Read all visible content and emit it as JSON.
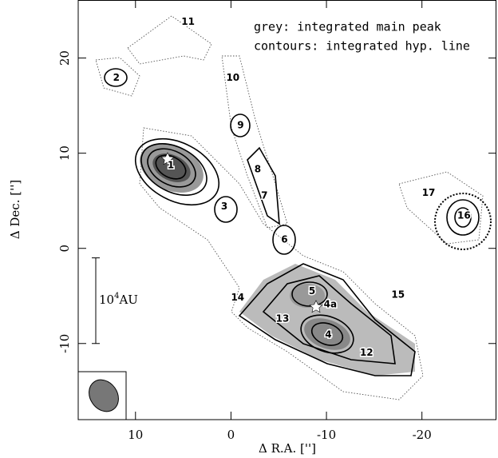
{
  "chart_data": {
    "type": "map",
    "legend_text": [
      "grey: integrated main peak",
      "contours: integrated hyp. line"
    ],
    "x_label": "Δ R.A. ['']",
    "y_label": "Δ Dec. ['']",
    "xlim": [
      16,
      -27.8
    ],
    "ylim": [
      -18,
      26.1
    ],
    "xticks": [
      10,
      0,
      -10,
      -20
    ],
    "yticks": [
      -10,
      0,
      10,
      20
    ],
    "scale_bar": {
      "base": "10",
      "exponent": "4",
      "unit": "AU",
      "y_from": -1,
      "y_to": -10
    },
    "sources": {
      "labels": [
        "1",
        "2",
        "3",
        "4",
        "4a",
        "5",
        "6",
        "7",
        "8",
        "9",
        "10",
        "11",
        "12",
        "13",
        "14",
        "15",
        "16",
        "17"
      ],
      "x": [
        6.3,
        12,
        0.7,
        -10.2,
        -10.4,
        -8.5,
        -5.6,
        -3.5,
        -2.8,
        -1,
        -0.2,
        4.5,
        -14.2,
        -5.4,
        -0.7,
        -17.5,
        -24.4,
        -20.7
      ],
      "y": [
        8.7,
        17.9,
        4.4,
        -9.1,
        -5.9,
        -4.5,
        0.9,
        5.5,
        8.3,
        12.9,
        17.9,
        23.8,
        -11,
        -7.4,
        -5.2,
        -4.9,
        3.4,
        5.8
      ]
    }
  }
}
